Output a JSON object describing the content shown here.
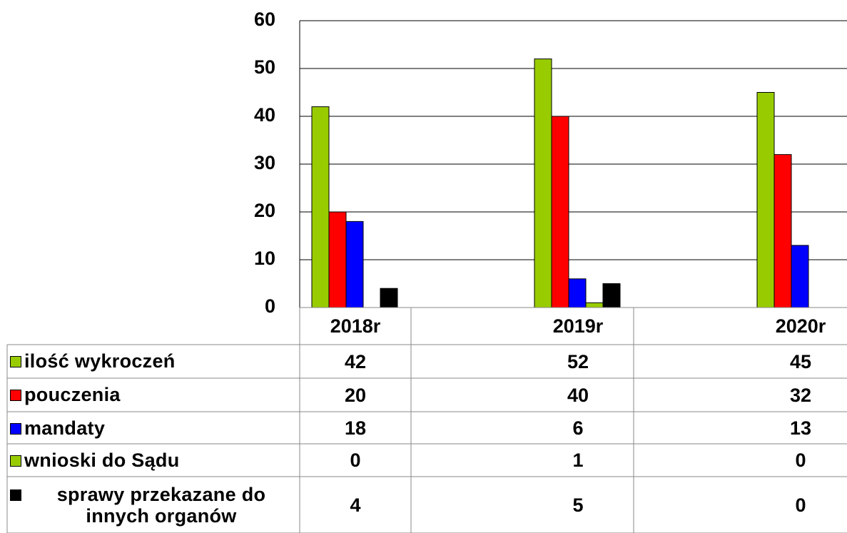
{
  "chart_data": {
    "type": "bar",
    "categories": [
      "2018r",
      null,
      "2019r",
      null,
      "2020r"
    ],
    "series": [
      {
        "name": "ilość wykroczeń",
        "color": "#99cc00",
        "values": [
          42,
          null,
          52,
          null,
          45
        ]
      },
      {
        "name": "pouczenia",
        "color": "#ff0000",
        "values": [
          20,
          null,
          40,
          null,
          32
        ]
      },
      {
        "name": "mandaty",
        "color": "#0000ff",
        "values": [
          18,
          null,
          6,
          null,
          13
        ]
      },
      {
        "name": "wnioski do Sądu",
        "color": "#99cc00",
        "values": [
          0,
          null,
          1,
          null,
          0
        ]
      },
      {
        "name": "sprawy przekazane do innych organów",
        "color": "#000000",
        "values": [
          4,
          null,
          5,
          null,
          0
        ]
      }
    ],
    "ylim": [
      0,
      60
    ],
    "yticks": [
      0,
      10,
      20,
      30,
      40,
      50,
      60
    ],
    "grid": true
  }
}
